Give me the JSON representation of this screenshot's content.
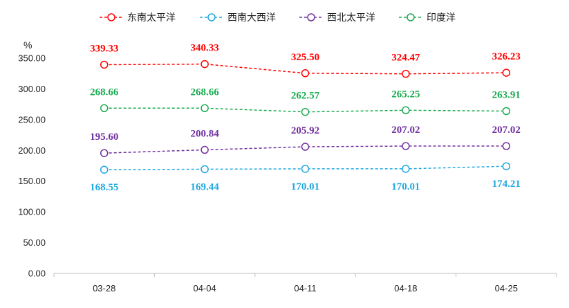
{
  "chart_data": {
    "type": "line",
    "y_unit": "%",
    "categories": [
      "03-28",
      "04-04",
      "04-11",
      "04-18",
      "04-25"
    ],
    "ylim": [
      0,
      350
    ],
    "yticks": [
      "0.00",
      "50.00",
      "100.00",
      "150.00",
      "200.00",
      "250.00",
      "300.00",
      "350.00"
    ],
    "ytick_values": [
      0,
      50,
      100,
      150,
      200,
      250,
      300,
      350
    ],
    "grid": false,
    "legend_position": "top",
    "series": [
      {
        "name": "东南太平洋",
        "color": "#ff0000",
        "label_position": "above",
        "values": [
          339.33,
          340.33,
          325.5,
          324.47,
          326.23
        ],
        "labels": [
          "339.33",
          "340.33",
          "325.50",
          "324.47",
          "326.23"
        ]
      },
      {
        "name": "西南大西洋",
        "color": "#1fa8e0",
        "label_position": "below",
        "values": [
          168.55,
          169.44,
          170.01,
          170.01,
          174.21
        ],
        "labels": [
          "168.55",
          "169.44",
          "170.01",
          "170.01",
          "174.21"
        ]
      },
      {
        "name": "西北太平洋",
        "color": "#7030a0",
        "label_position": "above",
        "values": [
          195.6,
          200.84,
          205.92,
          207.02,
          207.02
        ],
        "labels": [
          "195.60",
          "200.84",
          "205.92",
          "207.02",
          "207.02"
        ]
      },
      {
        "name": "印度洋",
        "color": "#1aab50",
        "label_position": "above",
        "values": [
          268.66,
          268.66,
          262.57,
          265.25,
          263.91
        ],
        "labels": [
          "268.66",
          "268.66",
          "262.57",
          "265.25",
          "263.91"
        ]
      }
    ]
  }
}
